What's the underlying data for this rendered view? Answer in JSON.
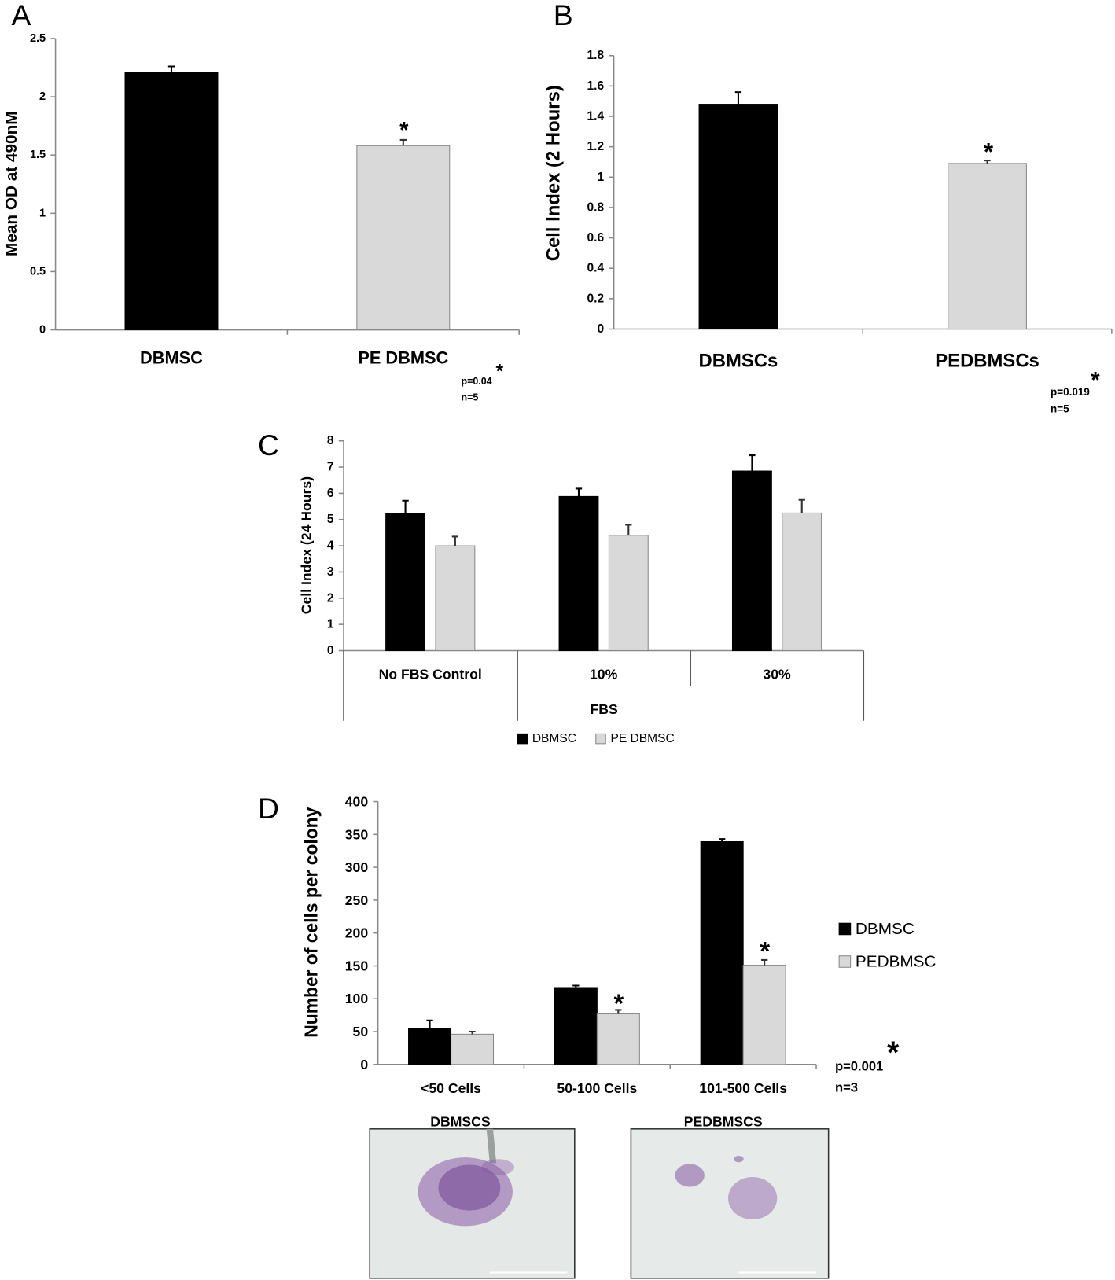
{
  "chart_data": [
    {
      "panel": "A",
      "type": "bar",
      "y_label": "Mean OD at 490nM",
      "categories": [
        "DBMSC",
        "PE DBMSC"
      ],
      "values": [
        2.21,
        1.58
      ],
      "errors": [
        0.05,
        0.05
      ],
      "colors": [
        "#000000",
        "#d9d9d9"
      ],
      "ylim": [
        0,
        2.5
      ],
      "yticks": [
        0,
        0.5,
        1,
        1.5,
        2,
        2.5
      ],
      "annotations": [
        "*",
        "p=0.04",
        "*",
        "n=5"
      ]
    },
    {
      "panel": "B",
      "type": "bar",
      "y_label": "Cell Index (2 Hours)",
      "categories": [
        "DBMSCs",
        "PEDBMSCs"
      ],
      "values": [
        1.48,
        1.09
      ],
      "errors": [
        0.08,
        0.02
      ],
      "colors": [
        "#000000",
        "#d9d9d9"
      ],
      "ylim": [
        0,
        1.8
      ],
      "yticks": [
        0,
        0.2,
        0.4,
        0.6,
        0.8,
        1,
        1.2,
        1.4,
        1.6,
        1.8
      ],
      "annotations": [
        "*",
        "p=0.019",
        "*",
        "n=5"
      ]
    },
    {
      "panel": "C",
      "type": "grouped_bar",
      "y_label": "Cell Index (24 Hours)",
      "categories": [
        "No FBS Control",
        "10%",
        "30%"
      ],
      "group_label": "FBS",
      "series": [
        {
          "name": "DBMSC",
          "color": "#000000",
          "values": [
            5.22,
            5.88,
            6.85
          ],
          "errors": [
            0.5,
            0.3,
            0.6
          ]
        },
        {
          "name": "PE DBMSC",
          "color": "#d9d9d9",
          "values": [
            4.0,
            4.4,
            5.25
          ],
          "errors": [
            0.35,
            0.4,
            0.5
          ]
        }
      ],
      "ylim": [
        0,
        8
      ],
      "yticks": [
        0,
        1,
        2,
        3,
        4,
        5,
        6,
        7,
        8
      ],
      "legend": "bottom",
      "annotations": []
    },
    {
      "panel": "D",
      "type": "grouped_bar",
      "y_label": "Number of cells per colony",
      "categories": [
        "<50 Cells",
        "50-100 Cells",
        "101-500 Cells"
      ],
      "series": [
        {
          "name": "DBMSC",
          "color": "#000000",
          "values": [
            55,
            117,
            339
          ],
          "errors": [
            12,
            3,
            4
          ]
        },
        {
          "name": "PEDBMSC",
          "color": "#d9d9d9",
          "values": [
            46,
            77,
            151
          ],
          "errors": [
            4,
            6,
            8
          ]
        }
      ],
      "ylim": [
        0,
        400
      ],
      "yticks": [
        0,
        50,
        100,
        150,
        200,
        250,
        300,
        350,
        400
      ],
      "legend": "right",
      "annotations": [
        "*",
        "*",
        "p=0.001",
        "*",
        "n=3"
      ]
    }
  ],
  "images": [
    {
      "caption": "DBMSCS"
    },
    {
      "caption": "PEDBMSCS"
    }
  ]
}
